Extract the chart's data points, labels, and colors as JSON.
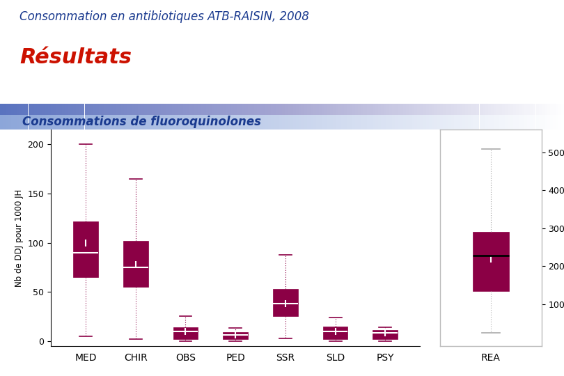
{
  "title": "Consommations de fluoroquinolones",
  "header_title": "Consommation en antibiotiques ATB-RAISIN, 2008",
  "subtitle": "Résultats",
  "ylabel": "Nb de DDJ pour 1000 JH",
  "background_color": "#ffffff",
  "box_color": "#8B0045",
  "whisker_color": "#8B0045",
  "title_color": "#1a3a8f",
  "header_color": "#1a3a8f",
  "subtitle_color": "#cc1100",
  "categories": [
    "MED",
    "CHIR",
    "OBS",
    "PED",
    "SSR",
    "SLD",
    "PSY"
  ],
  "boxes": {
    "MED": {
      "q1": 65,
      "median": 90,
      "q3": 122,
      "whislo": 5,
      "whishi": 200,
      "mean": 100
    },
    "CHIR": {
      "q1": 55,
      "median": 75,
      "q3": 102,
      "whislo": 2,
      "whishi": 165,
      "mean": 78
    },
    "OBS": {
      "q1": 2,
      "median": 10,
      "q3": 14,
      "whislo": 0,
      "whishi": 25,
      "mean": 10
    },
    "PED": {
      "q1": 2,
      "median": 6,
      "q3": 9,
      "whislo": 0,
      "whishi": 13,
      "mean": 6
    },
    "SSR": {
      "q1": 25,
      "median": 38,
      "q3": 53,
      "whislo": 3,
      "whishi": 88,
      "mean": 38
    },
    "SLD": {
      "q1": 2,
      "median": 10,
      "q3": 15,
      "whislo": 0,
      "whishi": 24,
      "mean": 10
    },
    "PSY": {
      "q1": 2,
      "median": 8,
      "q3": 11,
      "whislo": 0,
      "whishi": 14,
      "mean": 8
    }
  },
  "rea_box": {
    "q1": 135,
    "median": 228,
    "q3": 290,
    "whislo": 25,
    "whishi": 510,
    "mean": 220
  },
  "left_ylim": [
    -5,
    215
  ],
  "right_ylim": [
    -10,
    560
  ],
  "left_yticks": [
    0,
    50,
    100,
    150,
    200
  ],
  "right_yticks": [
    100,
    200,
    300,
    400,
    500
  ],
  "header_bar_colors": [
    "#6688cc",
    "#9ab0e0",
    "#ffffff"
  ],
  "rea_whisker_color": "#aaaaaa",
  "rea_cap_color": "#aaaaaa",
  "rea_median_color": "#000000"
}
